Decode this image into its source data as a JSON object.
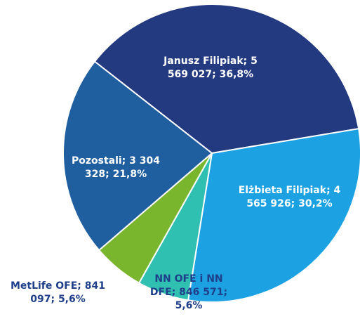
{
  "chart_data": {
    "type": "pie",
    "categories": [
      "Janusz Filipiak;",
      "Elżbieta Filipiak;",
      "NN OFE i NN DFE;",
      "MetLife OFE;",
      "Pozostali;"
    ],
    "values": [
      5569027,
      4565926,
      846571,
      841097,
      3304328
    ],
    "value_labels": [
      "5 569 027;",
      "4 565 926;",
      "846 571;",
      "841 097;",
      "3 304 328;"
    ],
    "percents": [
      36.8,
      30.2,
      5.6,
      5.6,
      21.8
    ],
    "percent_labels": [
      "36,8%",
      "30,2%",
      "5,6%",
      "5,6%",
      "21,8%"
    ],
    "colors": [
      "#243a80",
      "#1ca2e2",
      "#30c0b2",
      "#7ab52e",
      "#1f5e9f"
    ]
  }
}
